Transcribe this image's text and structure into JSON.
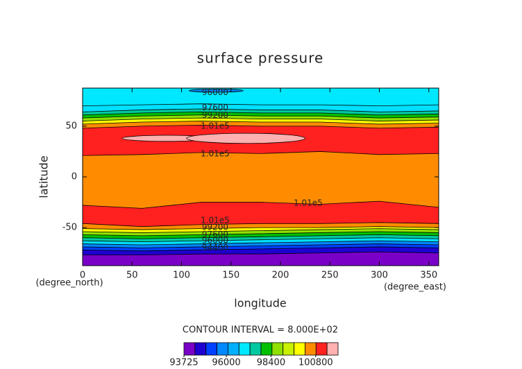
{
  "chart_data": {
    "type": "contour",
    "title": "surface pressure",
    "xlabel": "longitude",
    "ylabel": "latitude",
    "xunit": "(degree_east)",
    "yunit": "(degree_north)",
    "interval_label": "CONTOUR INTERVAL = 8.000E+02",
    "xlim": [
      0,
      360
    ],
    "ylim": [
      -87.5,
      87.5
    ],
    "xticks": [
      0,
      50,
      100,
      150,
      200,
      250,
      300,
      350
    ],
    "yticks": [
      -50,
      0,
      50
    ],
    "lons": [
      0,
      60,
      120,
      180,
      240,
      300,
      360
    ],
    "bands": [
      {
        "color": "#7a00c8",
        "top": [
          -77,
          -77,
          -76,
          -76,
          -75,
          -74,
          -75
        ]
      },
      {
        "color": "#1e00d0",
        "top": [
          -72,
          -73,
          -72,
          -71,
          -70,
          -69,
          -70
        ]
      },
      {
        "color": "#0040ff",
        "top": [
          -69,
          -70,
          -69,
          -68,
          -67,
          -66,
          -67
        ]
      },
      {
        "color": "#0088ff",
        "top": [
          -66,
          -67,
          -66,
          -65,
          -64,
          -63,
          -64
        ]
      },
      {
        "color": "#00e0ff",
        "top": [
          -63,
          -64,
          -63,
          -62,
          -61,
          -60,
          -61
        ]
      },
      {
        "color": "#00c8a0",
        "top": [
          -60,
          -61,
          -60,
          -59,
          -58,
          -57,
          -58
        ]
      },
      {
        "color": "#00c000",
        "top": [
          -57,
          -58,
          -57,
          -56,
          -55,
          -54,
          -55
        ]
      },
      {
        "color": "#90e000",
        "top": [
          -54,
          -55,
          -54,
          -53,
          -52,
          -51,
          -52
        ]
      },
      {
        "color": "#ffff00",
        "top": [
          -51,
          -52,
          -51,
          -50,
          -50,
          -49,
          -50
        ]
      },
      {
        "color": "#ff8c00",
        "top": [
          -46,
          -49,
          -47,
          -46,
          -46,
          -45,
          -46
        ]
      },
      {
        "color": "#ff2020",
        "top": [
          -28,
          -31,
          -25,
          -25,
          -27,
          -24,
          -30
        ]
      },
      {
        "color": "#ff8c00",
        "top": [
          21,
          22,
          24,
          23,
          25,
          22,
          23
        ]
      },
      {
        "color": "#ff2020",
        "top": [
          48,
          50,
          51,
          50,
          50,
          48,
          49
        ]
      },
      {
        "color": "#ff8c00",
        "top": [
          52,
          54,
          55,
          54,
          54,
          52,
          53
        ]
      },
      {
        "color": "#ffff00",
        "top": [
          55,
          57,
          58,
          57,
          57,
          55,
          56
        ]
      },
      {
        "color": "#90e000",
        "top": [
          58,
          60,
          61,
          60,
          60,
          58,
          59
        ]
      },
      {
        "color": "#00c000",
        "top": [
          61,
          63,
          64,
          63,
          63,
          61,
          62
        ]
      },
      {
        "color": "#00c8a0",
        "top": [
          64,
          66,
          67,
          66,
          66,
          64,
          65
        ]
      },
      {
        "color": "#00e0ff",
        "top": [
          70,
          71,
          72,
          71,
          71,
          70,
          71
        ]
      },
      {
        "color": "#00e8ff"
      }
    ],
    "patches": [
      {
        "color": "#ffb0b0",
        "lon": 85,
        "lat": 38,
        "width": 90,
        "height": 6
      },
      {
        "color": "#ffb0b0",
        "lon": 165,
        "lat": 38,
        "width": 120,
        "height": 10
      },
      {
        "color": "#0088ff",
        "lon": 135,
        "lat": 85,
        "width": 55,
        "height": 3
      }
    ],
    "contour_labels": [
      {
        "text": "96000",
        "lon": 134,
        "lat": 83
      },
      {
        "text": "97600",
        "lon": 134,
        "lat": 68
      },
      {
        "text": "99200",
        "lon": 134,
        "lat": 60.5
      },
      {
        "text": "1.01e5",
        "lon": 134,
        "lat": 50
      },
      {
        "text": "1.01e5",
        "lon": 134,
        "lat": 22.5
      },
      {
        "text": "1.01e5",
        "lon": 228,
        "lat": -26
      },
      {
        "text": "1.01e5",
        "lon": 134,
        "lat": -43
      },
      {
        "text": "99200",
        "lon": 134,
        "lat": -50
      },
      {
        "text": "97600",
        "lon": 134,
        "lat": -57
      },
      {
        "text": "96000",
        "lon": 134,
        "lat": -63
      },
      {
        "text": "94400",
        "lon": 134,
        "lat": -70
      }
    ],
    "colorbar": {
      "colors": [
        "#7a00c8",
        "#1e00d0",
        "#0040ff",
        "#0088ff",
        "#00b0ff",
        "#00e8ff",
        "#00c8a0",
        "#00c000",
        "#90e000",
        "#c8f000",
        "#ffff00",
        "#ff8c00",
        "#ff2020",
        "#ffb0b0"
      ],
      "lim": [
        93725,
        102000
      ],
      "ticks": [
        93725,
        96000,
        98400,
        100800
      ]
    }
  }
}
